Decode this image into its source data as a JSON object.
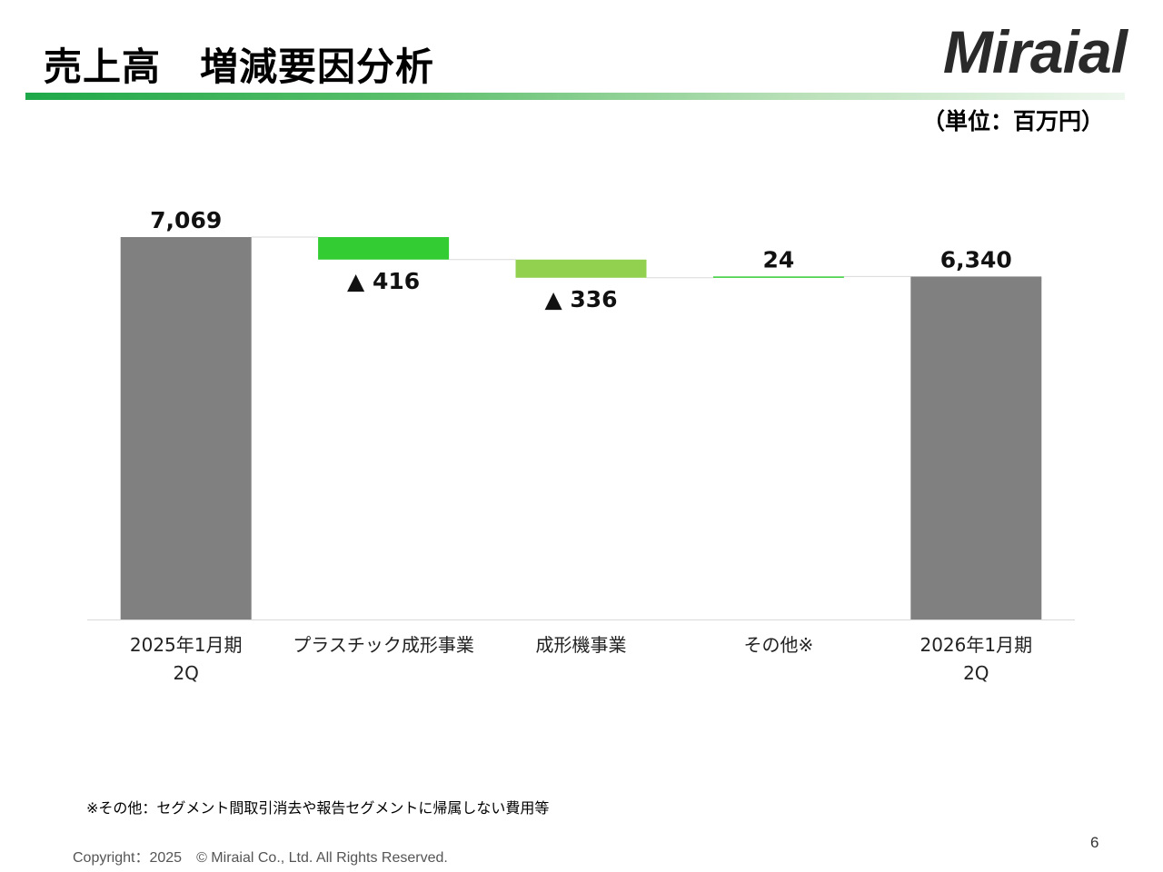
{
  "header": {
    "title": "売上高　増減要因分析",
    "logo_text": "Miraial",
    "unit": "（単位：百万円）"
  },
  "chart_data": {
    "type": "waterfall",
    "title": "",
    "xlabel": "",
    "ylabel": "",
    "categories": [
      [
        "2025年1月期",
        "2Q"
      ],
      [
        "プラスチック成形事業"
      ],
      [
        "成形機事業"
      ],
      [
        "その他※"
      ],
      [
        "2026年1月期",
        "2Q"
      ]
    ],
    "values": [
      7069,
      -416,
      -336,
      24,
      6340
    ],
    "kinds": [
      "total",
      "delta",
      "delta",
      "delta",
      "total"
    ],
    "labels": [
      "7,069",
      "▲ 416",
      "▲ 336",
      "24",
      "6,340"
    ],
    "colors": [
      "#808080",
      "#33cc33",
      "#92d050",
      "#33cc33",
      "#808080"
    ],
    "ylim": [
      0,
      7069
    ],
    "grid": false,
    "legend": "none"
  },
  "footer": {
    "footnote": "※その他：セグメント間取引消去や報告セグメントに帰属しない費用等",
    "copyright": "Copyright：2025　© Miraial Co., Ltd. All Rights Reserved.",
    "page_number": "6"
  }
}
